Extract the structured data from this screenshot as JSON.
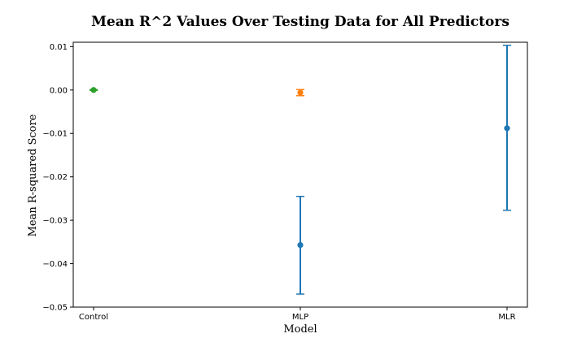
{
  "chart_data": {
    "type": "scatter",
    "title": "Mean R^2 Values Over Testing Data for All Predictors",
    "xlabel": "Model",
    "ylabel": "Mean R-squared Score",
    "categories": [
      "Control",
      "MLP",
      "MLR"
    ],
    "ylim": [
      -0.05,
      0.011
    ],
    "yticks": [
      0.01,
      0.0,
      -0.01,
      -0.02,
      -0.03,
      -0.04,
      -0.05
    ],
    "ytick_labels": [
      "0.01",
      "0.00",
      "−0.01",
      "−0.02",
      "−0.03",
      "−0.04",
      "−0.05"
    ],
    "grid": false,
    "series": [
      {
        "color": "#1f77b4",
        "points": [
          {
            "x": "MLP",
            "y": -0.0357,
            "err_low": -0.047,
            "err_high": -0.0245
          },
          {
            "x": "MLR",
            "y": -0.0088,
            "err_low": -0.0277,
            "err_high": 0.0103
          }
        ]
      },
      {
        "color": "#ff7f0e",
        "points": [
          {
            "x": "MLP",
            "y": -0.0006,
            "err_low": -0.0013,
            "err_high": 0.0001
          }
        ]
      },
      {
        "color": "#2ca02c",
        "points": [
          {
            "x": "Control",
            "y": 0.0,
            "err_low": -0.0001,
            "err_high": 0.0001
          }
        ]
      }
    ]
  }
}
